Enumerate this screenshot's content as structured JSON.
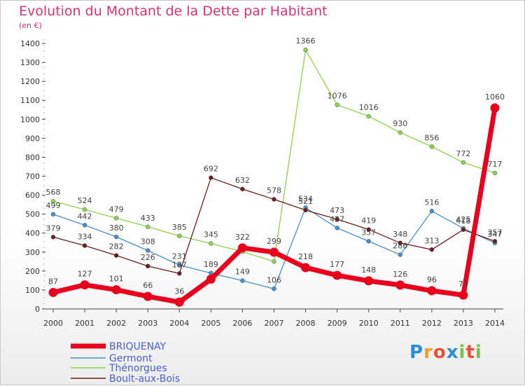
{
  "chart_data": {
    "type": "line",
    "title": "Evolution du Montant de la Dette par Habitant",
    "subtitle": "(en €)",
    "xlabel": "",
    "ylabel": "",
    "categories": [
      "2000",
      "2001",
      "2002",
      "2003",
      "2004",
      "2005",
      "2006",
      "2007",
      "2008",
      "2009",
      "2010",
      "2011",
      "2012",
      "2013",
      "2014"
    ],
    "yticks": [
      0,
      100,
      200,
      300,
      400,
      500,
      600,
      700,
      800,
      900,
      1000,
      1100,
      1200,
      1300,
      1400
    ],
    "ylim": [
      0,
      1400
    ],
    "grid": false,
    "legend_position": "bottom-left",
    "series": [
      {
        "name": "BRIQUENAY",
        "color": "#e8001c",
        "values": [
          87,
          127,
          101,
          66,
          36,
          157,
          322,
          299,
          218,
          177,
          148,
          126,
          96,
          73,
          1060
        ],
        "labels": [
          "87",
          "127",
          "101",
          "66",
          "36",
          "",
          "322",
          "299",
          "218",
          "177",
          "148",
          "126",
          "96",
          "73",
          "1060"
        ]
      },
      {
        "name": "Germont",
        "color": "#4a90c8",
        "values": [
          499,
          442,
          380,
          308,
          231,
          189,
          149,
          106,
          534,
          427,
          357,
          286,
          516,
          425,
          347
        ],
        "labels": [
          "499",
          "442",
          "380",
          "308",
          "231",
          "189",
          "149",
          "106",
          "534",
          "427",
          "357",
          "286",
          "516",
          "425",
          "347"
        ]
      },
      {
        "name": "Thénorgues",
        "color": "#8fd14f",
        "values": [
          568,
          524,
          479,
          433,
          385,
          345,
          302,
          250,
          1366,
          1076,
          1016,
          930,
          856,
          772,
          717
        ],
        "labels": [
          "568",
          "524",
          "479",
          "433",
          "385",
          "345",
          "",
          "",
          "1366",
          "1076",
          "1016",
          "930",
          "856",
          "772",
          "717"
        ]
      },
      {
        "name": "Boult-aux-Bois",
        "color": "#6b1e1e",
        "values": [
          379,
          334,
          282,
          226,
          187,
          692,
          632,
          578,
          521,
          473,
          419,
          348,
          313,
          418,
          357
        ],
        "labels": [
          "379",
          "334",
          "282",
          "226",
          "187",
          "692",
          "632",
          "578",
          "521",
          "473",
          "419",
          "348",
          "313",
          "418",
          "357"
        ]
      }
    ]
  },
  "logo": {
    "letters": [
      "P",
      "r",
      "o",
      "x",
      "i",
      "t",
      "i"
    ]
  }
}
